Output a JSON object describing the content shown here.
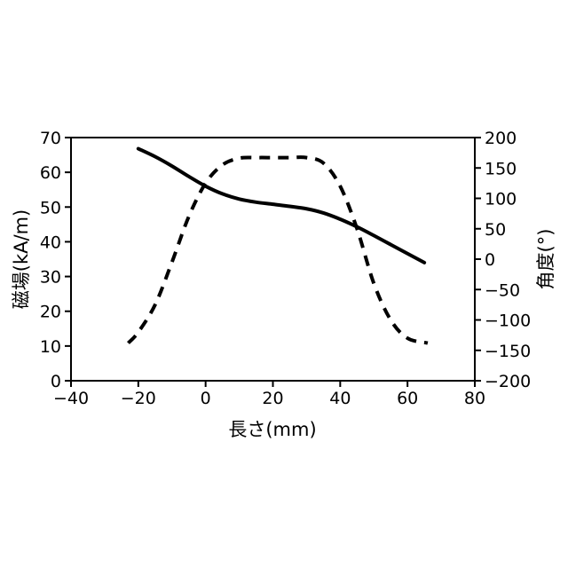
{
  "chart_data": {
    "type": "line",
    "xlabel": "長さ(mm)",
    "ylabel_left": "磁場(kA/m)",
    "ylabel_right": "角度(°)",
    "xlim": [
      -40,
      80
    ],
    "ylim_left": [
      0,
      70
    ],
    "ylim_right": [
      -200,
      200
    ],
    "xticks": [
      -40,
      -20,
      0,
      20,
      40,
      60,
      80
    ],
    "yticks_left": [
      0,
      10,
      20,
      30,
      40,
      50,
      60,
      70
    ],
    "yticks_right": [
      -200,
      -150,
      -100,
      -50,
      0,
      50,
      100,
      150,
      200
    ],
    "grid": false,
    "series": [
      {
        "axis": "left",
        "style": "solid",
        "color": "#000000",
        "x": [
          -20,
          -15,
          -10,
          -5,
          0,
          5,
          10,
          15,
          20,
          25,
          30,
          35,
          40,
          45,
          50,
          55,
          60,
          65
        ],
        "y": [
          66.8,
          64.5,
          61.8,
          58.8,
          56.0,
          53.8,
          52.3,
          51.4,
          50.8,
          50.2,
          49.5,
          48.3,
          46.5,
          44.3,
          41.8,
          39.2,
          36.6,
          34.0
        ]
      },
      {
        "axis": "right",
        "style": "dashed",
        "color": "#000000",
        "x": [
          -23,
          -20,
          -15,
          -10,
          -5,
          0,
          5,
          10,
          15,
          20,
          25,
          30,
          35,
          40,
          45,
          50,
          55,
          60,
          66
        ],
        "y": [
          -138,
          -120,
          -75,
          -5,
          70,
          125,
          155,
          166,
          167,
          167,
          167,
          167,
          158,
          120,
          50,
          -40,
          -100,
          -130,
          -138
        ]
      }
    ]
  }
}
